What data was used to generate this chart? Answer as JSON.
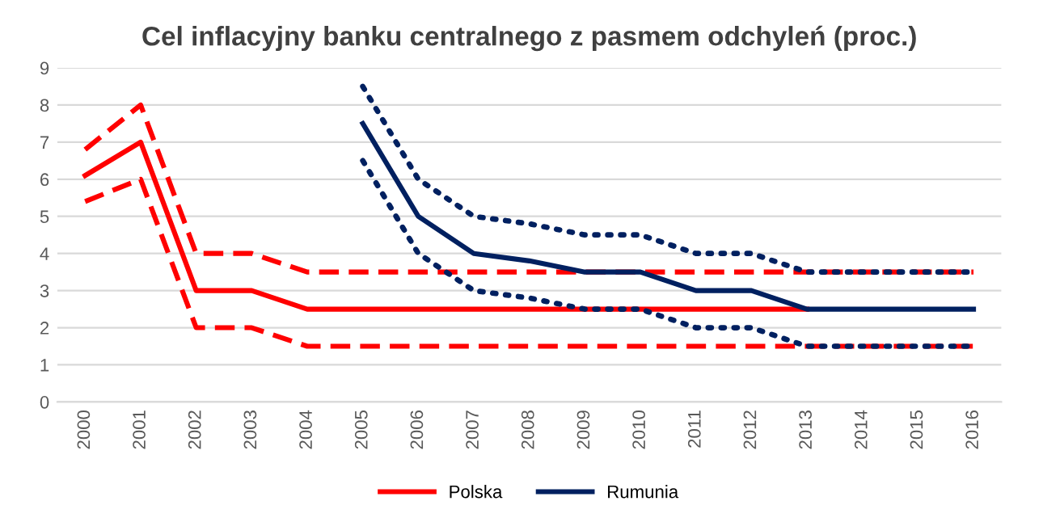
{
  "chart_data": {
    "type": "line",
    "title": "Cel inflacyjny banku centralnego z pasmem odchyleń (proc.)",
    "categories": [
      "2000",
      "2001",
      "2002",
      "2003",
      "2004",
      "2005",
      "2006",
      "2007",
      "2008",
      "2009",
      "2010",
      "2011",
      "2012",
      "2013",
      "2014",
      "2015",
      "2016"
    ],
    "series": [
      {
        "name": "Polska",
        "color": "#ff0000",
        "line_style": "solid",
        "values": [
          6.1,
          7,
          3,
          3,
          2.5,
          2.5,
          2.5,
          2.5,
          2.5,
          2.5,
          2.5,
          2.5,
          2.5,
          2.5,
          null,
          null,
          null
        ]
      },
      {
        "color": "#ff0000",
        "line_style": "dashed",
        "values": [
          6.8,
          8,
          4,
          4,
          3.5,
          3.5,
          3.5,
          3.5,
          3.5,
          3.5,
          3.5,
          3.5,
          3.5,
          3.5,
          3.5,
          3.5,
          3.5
        ]
      },
      {
        "color": "#ff0000",
        "line_style": "dashed",
        "values": [
          5.4,
          6,
          2,
          2,
          1.5,
          1.5,
          1.5,
          1.5,
          1.5,
          1.5,
          1.5,
          1.5,
          1.5,
          1.5,
          1.5,
          1.5,
          1.5
        ]
      },
      {
        "name": "Rumunia",
        "color": "#002060",
        "line_style": "solid",
        "values": [
          null,
          null,
          null,
          null,
          null,
          7.5,
          5,
          4,
          3.8,
          3.5,
          3.5,
          3,
          3,
          2.5,
          2.5,
          2.5,
          2.5
        ]
      },
      {
        "color": "#002060",
        "line_style": "dotted",
        "values": [
          null,
          null,
          null,
          null,
          null,
          8.5,
          6,
          5,
          4.8,
          4.5,
          4.5,
          4,
          4,
          3.5,
          3.5,
          3.5,
          3.5
        ]
      },
      {
        "color": "#002060",
        "line_style": "dotted",
        "values": [
          null,
          null,
          null,
          null,
          null,
          6.5,
          4,
          3,
          2.8,
          2.5,
          2.5,
          2,
          2,
          1.5,
          1.5,
          1.5,
          1.5
        ]
      }
    ],
    "ylim": [
      0,
      9
    ],
    "yticks": [
      0,
      1,
      2,
      3,
      4,
      5,
      6,
      7,
      8,
      9
    ],
    "grid": "y",
    "legend": "bottom"
  }
}
